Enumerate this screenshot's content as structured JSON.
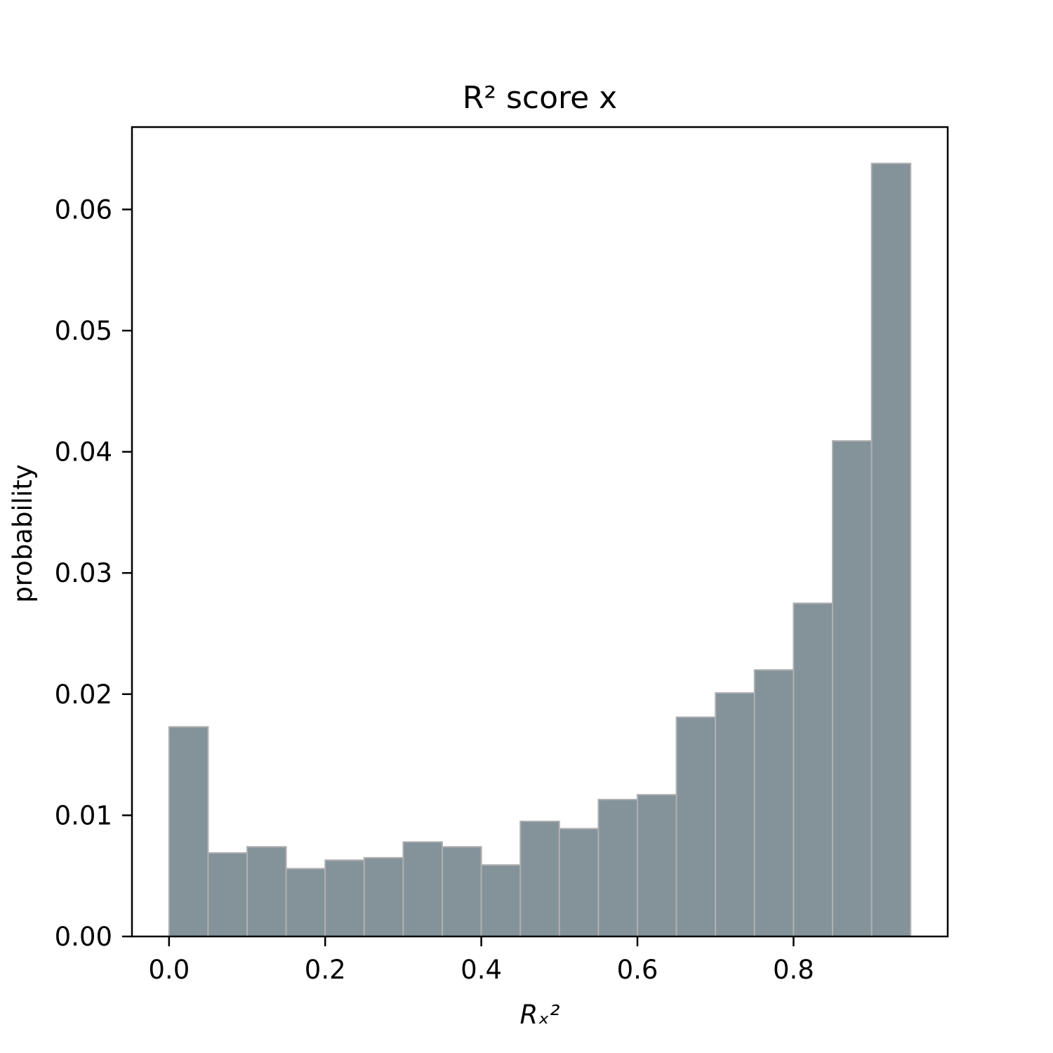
{
  "chart_data": {
    "type": "histogram",
    "title": "R² score x",
    "x_label": "Rₓ²",
    "y_label": "probability",
    "bins": [
      0,
      0.05,
      0.1,
      0.15,
      0.2,
      0.25,
      0.3,
      0.35,
      0.4,
      0.45,
      0.5,
      0.55,
      0.6,
      0.65,
      0.7,
      0.75,
      0.8,
      0.85,
      0.9,
      0.95
    ],
    "values": [
      0.0173,
      0.0069,
      0.0074,
      0.0056,
      0.0063,
      0.0065,
      0.0078,
      0.0074,
      0.0059,
      0.0095,
      0.0089,
      0.0113,
      0.0117,
      0.0181,
      0.0201,
      0.022,
      0.0275,
      0.0409,
      0.0638
    ],
    "color": "#84929a",
    "edgecolor": "#b0b0b0",
    "xlim": [
      -0.0475,
      0.9975
    ],
    "xticks": [
      {
        "value": 0,
        "label": "0.0"
      },
      0.2,
      0.4,
      0.6,
      0.8
    ],
    "ylim": [
      0,
      0.0668
    ],
    "yticks": [
      {
        "value": 0,
        "label": "0.00"
      },
      0.01,
      0.02,
      0.03,
      0.04,
      0.05,
      0.06
    ],
    "grid": false
  }
}
